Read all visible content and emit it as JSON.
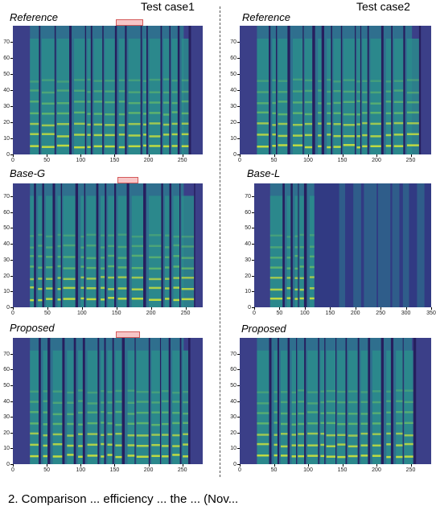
{
  "headers": {
    "case1": "Test case1",
    "case2": "Test case2"
  },
  "rows": [
    {
      "label_left": "Reference",
      "label_right": "Reference",
      "left": {
        "x_ticks": [
          "0",
          "50",
          "100",
          "150",
          "200",
          "250"
        ],
        "x_vals": [
          0,
          50,
          100,
          150,
          200,
          250
        ],
        "x_max": 280,
        "y_ticks": [
          "0",
          "10",
          "20",
          "30",
          "40",
          "50",
          "60",
          "70"
        ],
        "y_vals": [
          0,
          10,
          20,
          30,
          40,
          50,
          60,
          70
        ],
        "y_max": 80,
        "highlight": [
          152,
          192
        ]
      },
      "right": {
        "x_ticks": [
          "0",
          "50",
          "100",
          "150",
          "200",
          "250"
        ],
        "x_vals": [
          0,
          50,
          100,
          150,
          200,
          250
        ],
        "x_max": 280,
        "y_ticks": [
          "0",
          "10",
          "20",
          "30",
          "40",
          "50",
          "60",
          "70"
        ],
        "y_vals": [
          0,
          10,
          20,
          30,
          40,
          50,
          60,
          70
        ],
        "y_max": 80,
        "highlight": null
      }
    },
    {
      "label_left": "Base-G",
      "label_right": "Base-L",
      "left": {
        "x_ticks": [
          "0",
          "50",
          "100",
          "150",
          "200",
          "250"
        ],
        "x_vals": [
          0,
          50,
          100,
          150,
          200,
          250
        ],
        "x_max": 275,
        "y_ticks": [
          "0",
          "10",
          "20",
          "30",
          "40",
          "50",
          "60",
          "70"
        ],
        "y_vals": [
          0,
          10,
          20,
          30,
          40,
          50,
          60,
          70
        ],
        "y_max": 78,
        "highlight": [
          152,
          182
        ]
      },
      "right": {
        "x_ticks": [
          "0",
          "50",
          "100",
          "150",
          "200",
          "250",
          "300",
          "350"
        ],
        "x_vals": [
          0,
          50,
          100,
          150,
          200,
          250,
          300,
          350
        ],
        "x_max": 350,
        "y_ticks": [
          "0",
          "10",
          "20",
          "30",
          "40",
          "50",
          "60",
          "70"
        ],
        "y_vals": [
          0,
          10,
          20,
          30,
          40,
          50,
          60,
          70
        ],
        "y_max": 78,
        "highlight": null
      }
    },
    {
      "label_left": "Proposed",
      "label_right": "Proposed",
      "left": {
        "x_ticks": [
          "0",
          "50",
          "100",
          "150",
          "200",
          "250"
        ],
        "x_vals": [
          0,
          50,
          100,
          150,
          200,
          250
        ],
        "x_max": 280,
        "y_ticks": [
          "0",
          "10",
          "20",
          "30",
          "40",
          "50",
          "60",
          "70"
        ],
        "y_vals": [
          0,
          10,
          20,
          30,
          40,
          50,
          60,
          70
        ],
        "y_max": 80,
        "highlight": [
          152,
          187
        ]
      },
      "right": {
        "x_ticks": [
          "0",
          "50",
          "100",
          "150",
          "200",
          "250"
        ],
        "x_vals": [
          0,
          50,
          100,
          150,
          200,
          250
        ],
        "x_max": 280,
        "y_ticks": [
          "0",
          "10",
          "20",
          "30",
          "40",
          "50",
          "60",
          "70"
        ],
        "y_vals": [
          0,
          10,
          20,
          30,
          40,
          50,
          60,
          70
        ],
        "y_max": 80,
        "highlight": null
      }
    }
  ],
  "caption": "2. Comparison ... efficiency ... the ... (Nov..."
}
